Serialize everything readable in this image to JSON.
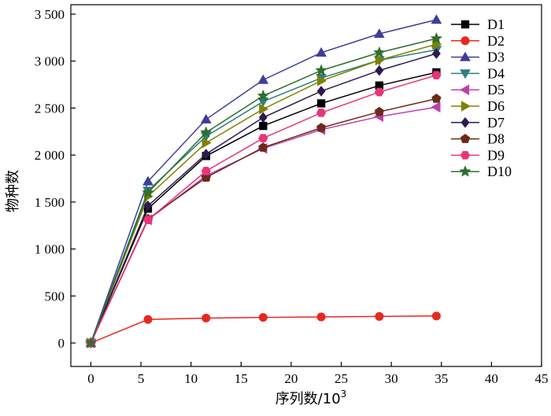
{
  "chart_data": {
    "type": "line",
    "xlabel": "序列数/10",
    "xlabel_sup": "3",
    "ylabel": "物种数",
    "xlim": [
      -2,
      45
    ],
    "ylim": [
      -250,
      3600
    ],
    "x_ticks": [
      0,
      5,
      10,
      15,
      20,
      25,
      30,
      35,
      40,
      45
    ],
    "x_tick_labels": [
      "0",
      "5",
      "10",
      "15",
      "20",
      "25",
      "30",
      "35",
      "40",
      "45"
    ],
    "y_ticks": [
      0,
      500,
      1000,
      1500,
      2000,
      2500,
      3000,
      3500
    ],
    "y_tick_labels": [
      "0",
      "500",
      "1 000",
      "1 500",
      "2 000",
      "2 500",
      "3 000",
      "3 500"
    ],
    "grid": false,
    "legend_position": "top-right",
    "x": [
      0,
      5.7,
      11.5,
      17.2,
      23,
      28.8,
      34.5
    ],
    "series": [
      {
        "name": "D1",
        "color": "#000000",
        "marker": "square",
        "values": [
          0,
          1430,
          1990,
          2310,
          2550,
          2740,
          2880
        ]
      },
      {
        "name": "D2",
        "color": "#e8281e",
        "marker": "circle",
        "values": [
          0,
          250,
          265,
          272,
          277,
          282,
          287
        ]
      },
      {
        "name": "D3",
        "color": "#3e3e9a",
        "marker": "triangle-up",
        "values": [
          0,
          1720,
          2380,
          2800,
          3090,
          3290,
          3440
        ]
      },
      {
        "name": "D4",
        "color": "#2f7f7f",
        "marker": "triangle-down",
        "values": [
          0,
          1620,
          2200,
          2570,
          2820,
          3010,
          3120
        ]
      },
      {
        "name": "D5",
        "color": "#c03fa8",
        "marker": "triangle-left",
        "values": [
          0,
          1310,
          1780,
          2070,
          2270,
          2410,
          2510
        ]
      },
      {
        "name": "D6",
        "color": "#808000",
        "marker": "triangle-right",
        "values": [
          0,
          1560,
          2130,
          2490,
          2790,
          3010,
          3180
        ]
      },
      {
        "name": "D7",
        "color": "#2e1a50",
        "marker": "diamond",
        "values": [
          0,
          1460,
          2010,
          2400,
          2680,
          2900,
          3080
        ]
      },
      {
        "name": "D8",
        "color": "#6b2a1a",
        "marker": "pentagon",
        "values": [
          0,
          1320,
          1760,
          2080,
          2290,
          2460,
          2600
        ]
      },
      {
        "name": "D9",
        "color": "#e8357a",
        "marker": "hexagon",
        "values": [
          0,
          1310,
          1830,
          2180,
          2450,
          2670,
          2850
        ]
      },
      {
        "name": "D10",
        "color": "#2e6e2e",
        "marker": "star",
        "values": [
          0,
          1600,
          2240,
          2630,
          2900,
          3090,
          3240
        ]
      }
    ]
  }
}
